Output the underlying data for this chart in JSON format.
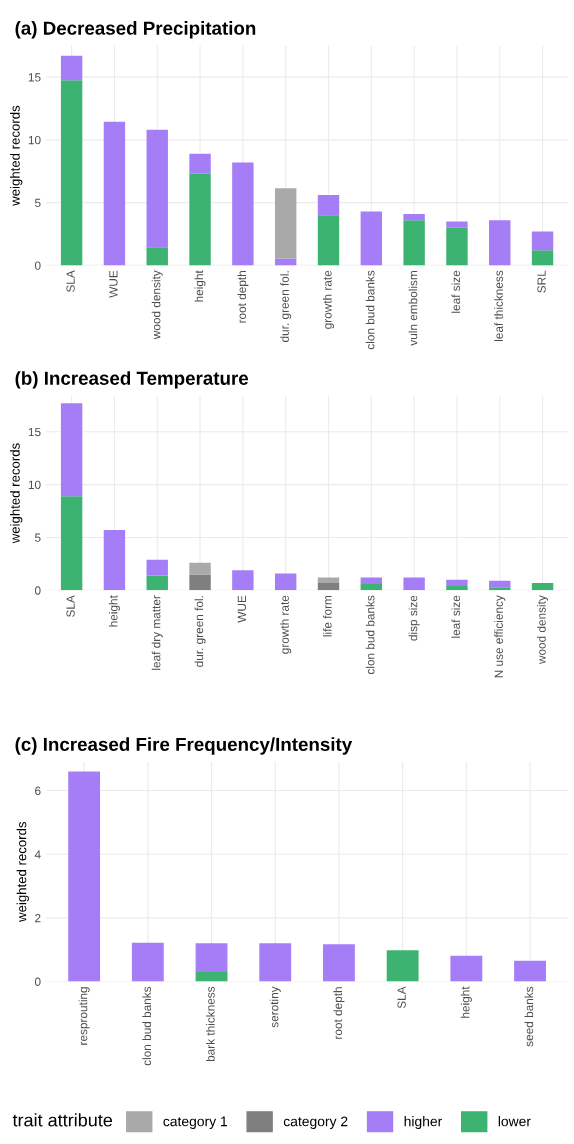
{
  "chart_data": [
    {
      "type": "bar",
      "stacked": true,
      "title": "(a) Decreased Precipitation",
      "ylabel": "weighted records",
      "legend_title": "trait attribute",
      "legend": "bottom",
      "categories": [
        "SLA",
        "WUE",
        "wood density",
        "height",
        "root depth",
        "dur. green fol.",
        "growth rate",
        "clon bud banks",
        "vuln embolism",
        "leaf size",
        "leaf thickness",
        "SRL"
      ],
      "series": [
        {
          "name": "lower",
          "color": "#3cb371",
          "values": [
            14.75,
            null,
            1.45,
            7.3,
            null,
            null,
            4.0,
            null,
            3.6,
            3.0,
            null,
            1.2
          ]
        },
        {
          "name": "higher",
          "color": "#a57ef7",
          "values": [
            1.95,
            11.45,
            9.35,
            1.6,
            8.2,
            0.55,
            1.6,
            4.3,
            0.5,
            0.5,
            3.6,
            1.5
          ]
        },
        {
          "name": "category 2",
          "color": "#7f7f7f",
          "values": [
            null,
            null,
            null,
            null,
            null,
            null,
            null,
            null,
            null,
            null,
            null,
            null
          ]
        },
        {
          "name": "category 1",
          "color": "#a9a9a9",
          "values": [
            null,
            null,
            null,
            null,
            null,
            5.6,
            null,
            null,
            null,
            null,
            null,
            null
          ]
        }
      ],
      "ylim": [
        0,
        17.5
      ],
      "yticks": [
        0,
        5,
        10,
        15
      ],
      "grid": true
    },
    {
      "type": "bar",
      "stacked": true,
      "title": "(b) Increased Temperature",
      "ylabel": "weighted records",
      "categories": [
        "SLA",
        "height",
        "leaf dry matter",
        "dur. green fol.",
        "WUE",
        "growth rate",
        "life form",
        "clon bud banks",
        "disp size",
        "leaf size",
        "N use efficiency",
        "wood density"
      ],
      "series": [
        {
          "color": "#3cb371",
          "values": [
            8.9,
            null,
            1.4,
            null,
            null,
            null,
            null,
            0.6,
            null,
            0.4,
            0.3,
            0.7
          ]
        },
        {
          "color": "#a57ef7",
          "values": [
            8.8,
            5.7,
            1.5,
            null,
            1.9,
            1.6,
            null,
            0.6,
            1.2,
            0.6,
            0.6,
            null
          ]
        },
        {
          "color": "#7f7f7f",
          "values": [
            null,
            null,
            null,
            1.5,
            null,
            null,
            0.7,
            null,
            null,
            null,
            null,
            null
          ]
        },
        {
          "color": "#a9a9a9",
          "values": [
            null,
            null,
            null,
            1.1,
            null,
            null,
            0.5,
            null,
            null,
            null,
            null,
            null
          ]
        }
      ],
      "ylim": [
        0,
        18.4
      ],
      "yticks": [
        0,
        5,
        10,
        15
      ],
      "grid": true
    },
    {
      "type": "bar",
      "stacked": true,
      "title": "(c) Increased Fire Frequency/Intensity",
      "ylabel": "weighted records",
      "categories": [
        "resprouting",
        "clon bud banks",
        "bark thickness",
        "serotiny",
        "root depth",
        "SLA",
        "height",
        "seed banks"
      ],
      "series": [
        {
          "color": "#3cb371",
          "values": [
            null,
            null,
            0.3,
            null,
            null,
            0.98,
            null,
            null
          ]
        },
        {
          "color": "#a57ef7",
          "values": [
            6.6,
            1.22,
            0.9,
            1.2,
            1.17,
            null,
            0.81,
            0.65
          ]
        }
      ],
      "ylim": [
        0,
        6.9
      ],
      "yticks": [
        0,
        2,
        4,
        6
      ],
      "grid": true
    }
  ]
}
